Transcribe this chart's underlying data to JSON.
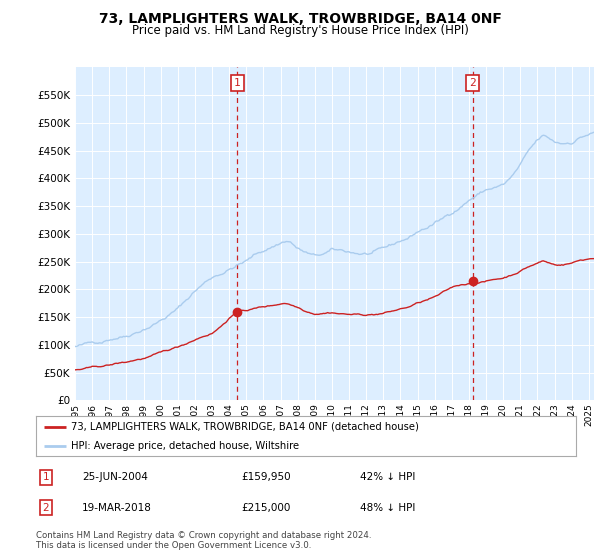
{
  "title": "73, LAMPLIGHTERS WALK, TROWBRIDGE, BA14 0NF",
  "subtitle": "Price paid vs. HM Land Registry's House Price Index (HPI)",
  "legend_line1": "73, LAMPLIGHTERS WALK, TROWBRIDGE, BA14 0NF (detached house)",
  "legend_line2": "HPI: Average price, detached house, Wiltshire",
  "annotation1_date": "25-JUN-2004",
  "annotation1_price": "£159,950",
  "annotation1_hpi": "42% ↓ HPI",
  "annotation2_date": "19-MAR-2018",
  "annotation2_price": "£215,000",
  "annotation2_hpi": "48% ↓ HPI",
  "footer": "Contains HM Land Registry data © Crown copyright and database right 2024.\nThis data is licensed under the Open Government Licence v3.0.",
  "hpi_color": "#aaccee",
  "price_color": "#cc2222",
  "annotation_box_color": "#cc2222",
  "bg_color": "#ddeeff",
  "sale1_x": 2004.48,
  "sale1_y": 159950,
  "sale2_x": 2018.21,
  "sale2_y": 215000,
  "ylim": [
    0,
    600000
  ],
  "xlim_start": 1995.0,
  "xlim_end": 2025.3
}
